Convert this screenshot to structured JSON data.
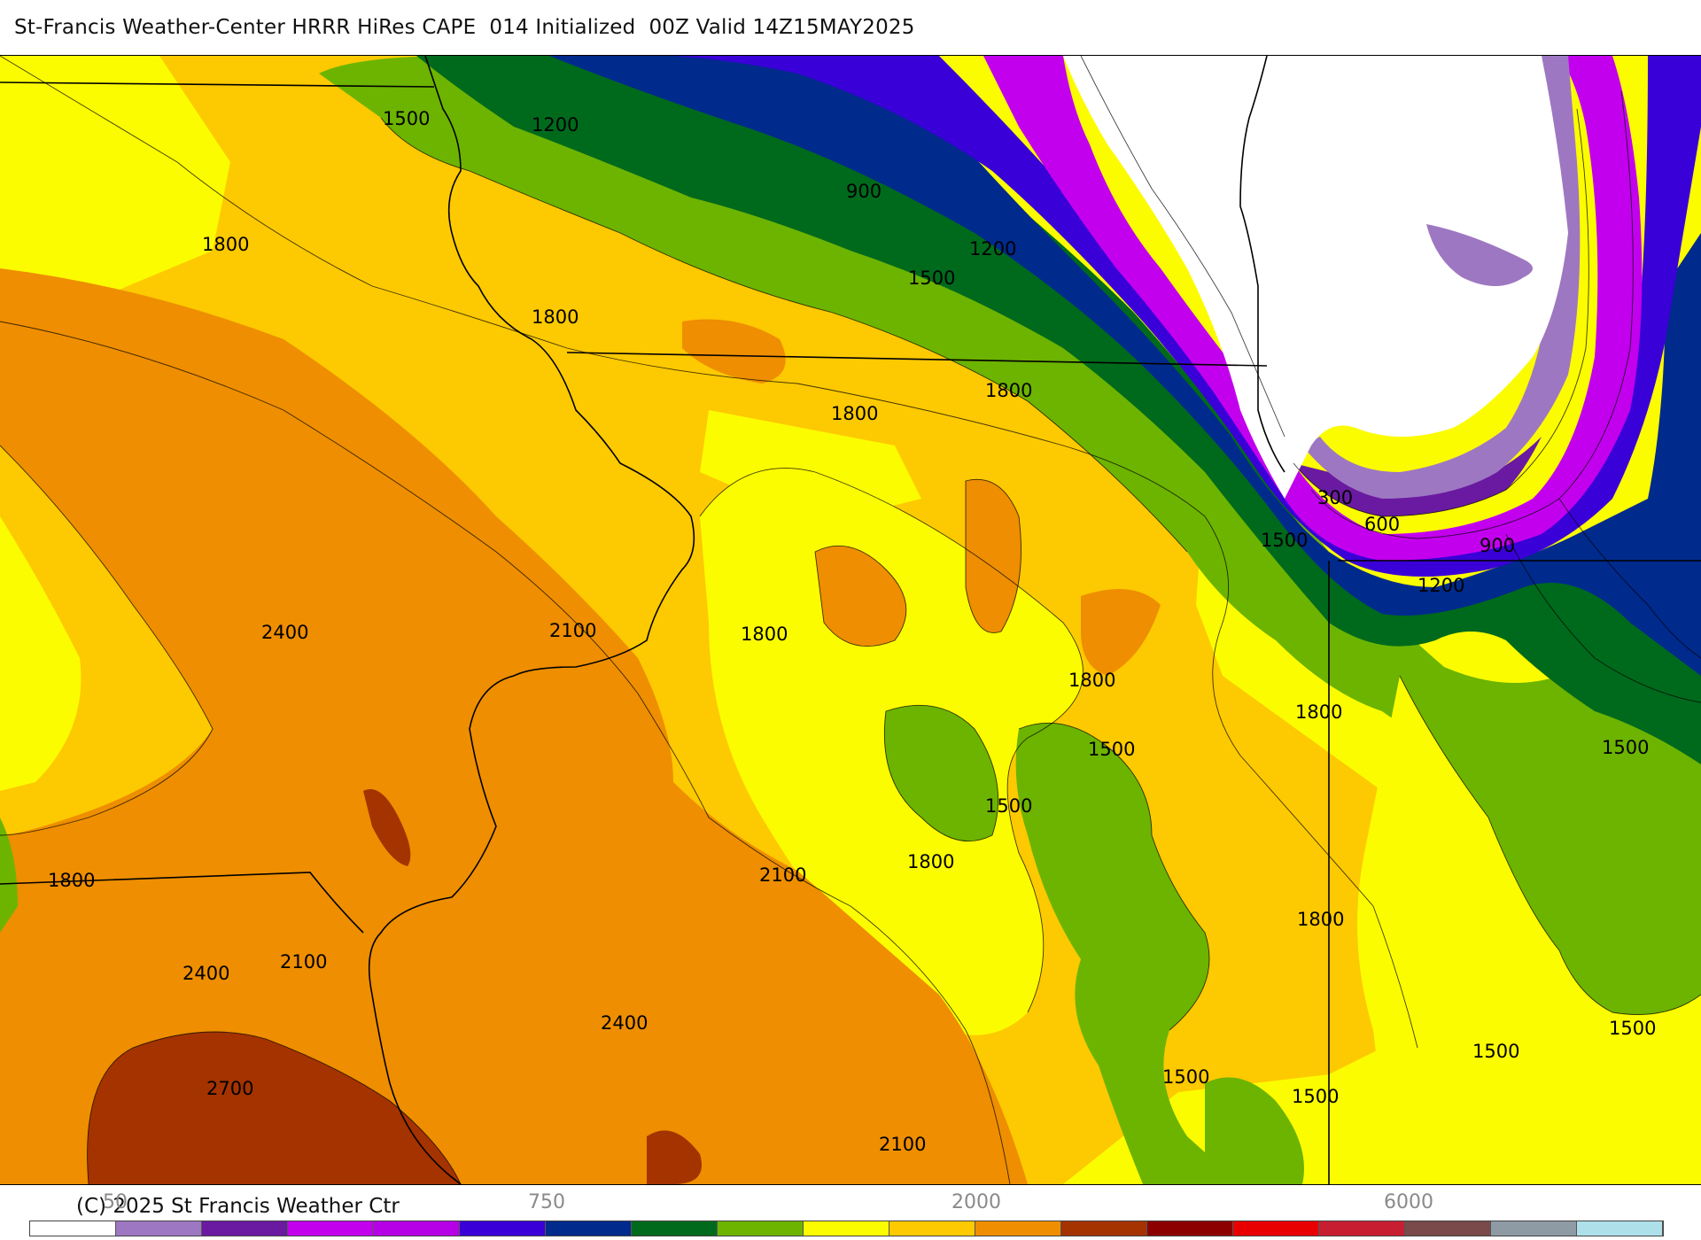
{
  "header": {
    "title": "St-Francis Weather-Center HRRR HiRes CAPE  014 Initialized  00Z Valid 14Z15MAY2025"
  },
  "footer": {
    "copyright": "(C) 2025 St Francis Weather Ctr"
  },
  "colors": {
    "c_lake": "#ffffff",
    "c_lav": "#9e77c2",
    "c_indigo": "#6a1aa0",
    "c_magenta": "#c200ee",
    "c_blue": "#3a00d8",
    "c_navy": "#002a8c",
    "c_dgreen": "#006a1c",
    "c_green": "#6cb400",
    "c_yellow": "#fcfc00",
    "c_gold": "#fdc900",
    "c_orange": "#ee8e00",
    "c_rust": "#a43300",
    "c_line": "#000000"
  },
  "contour_labels": [
    {
      "text": "1500"
    },
    {
      "text": "1200"
    },
    {
      "text": "1800"
    },
    {
      "text": "900"
    },
    {
      "text": "1200"
    },
    {
      "text": "1500"
    },
    {
      "text": "1800"
    },
    {
      "text": "1800"
    },
    {
      "text": "1800"
    },
    {
      "text": "300"
    },
    {
      "text": "600"
    },
    {
      "text": "1500"
    },
    {
      "text": "900"
    },
    {
      "text": "1200"
    },
    {
      "text": "2400"
    },
    {
      "text": "2100"
    },
    {
      "text": "1800"
    },
    {
      "text": "1800"
    },
    {
      "text": "1800"
    },
    {
      "text": "1500"
    },
    {
      "text": "1500"
    },
    {
      "text": "1500"
    },
    {
      "text": "1800"
    },
    {
      "text": "1800"
    },
    {
      "text": "2100"
    },
    {
      "text": "1800"
    },
    {
      "text": "2100"
    },
    {
      "text": "2400"
    },
    {
      "text": "2400"
    },
    {
      "text": "2700"
    },
    {
      "text": "2100"
    },
    {
      "text": "1500"
    },
    {
      "text": "1500"
    },
    {
      "text": "1500"
    },
    {
      "text": "1500"
    },
    {
      "text": "1800"
    }
  ],
  "colorbar": {
    "ticks": [
      {
        "text": "50"
      },
      {
        "text": "750"
      },
      {
        "text": "2000"
      },
      {
        "text": "6000"
      }
    ],
    "colors": [
      "#ffffff",
      "#9e77c2",
      "#6a1aa0",
      "#c200ee",
      "#b600e6",
      "#3a00d8",
      "#002a8c",
      "#006a1c",
      "#6cb400",
      "#fcfc00",
      "#fdc900",
      "#ee8e00",
      "#a43300",
      "#8c0000",
      "#e80000",
      "#c81e32",
      "#7a4a4a",
      "#8e9aa4",
      "#aee0ea"
    ]
  }
}
